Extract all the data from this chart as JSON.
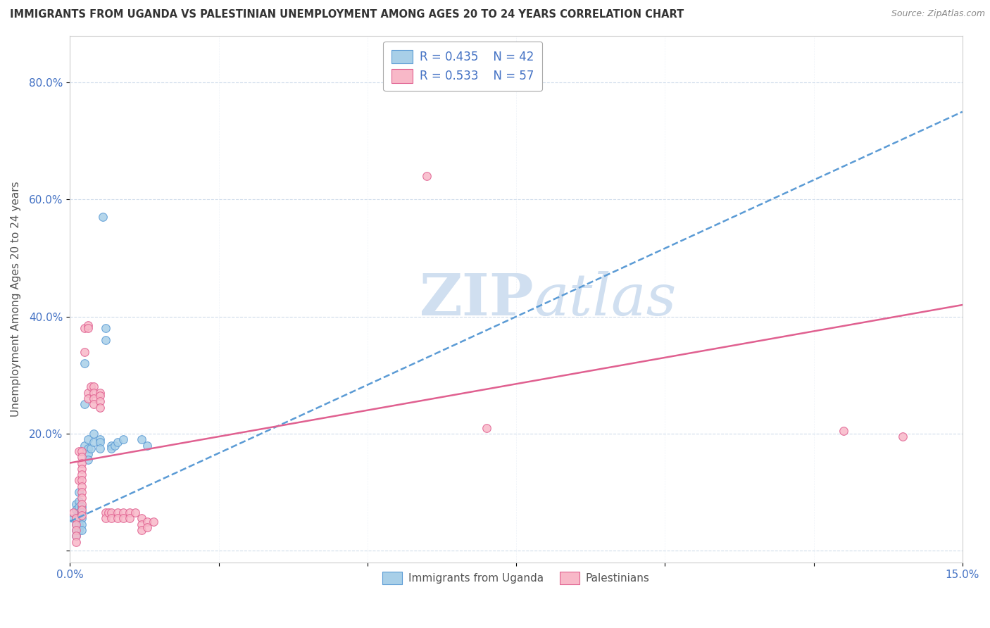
{
  "title": "IMMIGRANTS FROM UGANDA VS PALESTINIAN UNEMPLOYMENT AMONG AGES 20 TO 24 YEARS CORRELATION CHART",
  "source": "Source: ZipAtlas.com",
  "ylabel_label": "Unemployment Among Ages 20 to 24 years",
  "xlim": [
    0.0,
    0.15
  ],
  "ylim": [
    -0.02,
    0.88
  ],
  "legend1_r": "R = 0.435",
  "legend1_n": "N = 42",
  "legend2_r": "R = 0.533",
  "legend2_n": "N = 57",
  "blue_color": "#a8cfe8",
  "pink_color": "#f8b8c8",
  "blue_edge_color": "#5b9bd5",
  "pink_edge_color": "#e06090",
  "blue_line_color": "#5b9bd5",
  "pink_line_color": "#e06090",
  "watermark_color": "#d0dff0",
  "blue_line": [
    [
      0.0,
      0.05
    ],
    [
      0.15,
      0.75
    ]
  ],
  "pink_line": [
    [
      0.0,
      0.15
    ],
    [
      0.15,
      0.42
    ]
  ],
  "blue_scatter": [
    [
      0.0005,
      0.055
    ],
    [
      0.001,
      0.08
    ],
    [
      0.001,
      0.07
    ],
    [
      0.001,
      0.055
    ],
    [
      0.001,
      0.045
    ],
    [
      0.001,
      0.035
    ],
    [
      0.001,
      0.025
    ],
    [
      0.0015,
      0.1
    ],
    [
      0.0015,
      0.085
    ],
    [
      0.0015,
      0.075
    ],
    [
      0.0015,
      0.065
    ],
    [
      0.0015,
      0.055
    ],
    [
      0.0015,
      0.045
    ],
    [
      0.0015,
      0.035
    ],
    [
      0.002,
      0.075
    ],
    [
      0.002,
      0.065
    ],
    [
      0.002,
      0.055
    ],
    [
      0.002,
      0.045
    ],
    [
      0.002,
      0.035
    ],
    [
      0.0025,
      0.32
    ],
    [
      0.0025,
      0.25
    ],
    [
      0.0025,
      0.18
    ],
    [
      0.003,
      0.19
    ],
    [
      0.003,
      0.175
    ],
    [
      0.003,
      0.165
    ],
    [
      0.003,
      0.155
    ],
    [
      0.0035,
      0.175
    ],
    [
      0.004,
      0.2
    ],
    [
      0.004,
      0.185
    ],
    [
      0.005,
      0.19
    ],
    [
      0.005,
      0.185
    ],
    [
      0.005,
      0.175
    ],
    [
      0.0055,
      0.57
    ],
    [
      0.006,
      0.38
    ],
    [
      0.006,
      0.36
    ],
    [
      0.007,
      0.18
    ],
    [
      0.007,
      0.175
    ],
    [
      0.0075,
      0.18
    ],
    [
      0.008,
      0.185
    ],
    [
      0.009,
      0.19
    ],
    [
      0.012,
      0.19
    ],
    [
      0.013,
      0.18
    ]
  ],
  "pink_scatter": [
    [
      0.0005,
      0.065
    ],
    [
      0.001,
      0.055
    ],
    [
      0.001,
      0.045
    ],
    [
      0.001,
      0.035
    ],
    [
      0.001,
      0.025
    ],
    [
      0.001,
      0.015
    ],
    [
      0.0015,
      0.17
    ],
    [
      0.0015,
      0.12
    ],
    [
      0.002,
      0.17
    ],
    [
      0.002,
      0.16
    ],
    [
      0.002,
      0.15
    ],
    [
      0.002,
      0.14
    ],
    [
      0.002,
      0.13
    ],
    [
      0.002,
      0.12
    ],
    [
      0.002,
      0.11
    ],
    [
      0.002,
      0.1
    ],
    [
      0.002,
      0.09
    ],
    [
      0.002,
      0.08
    ],
    [
      0.002,
      0.07
    ],
    [
      0.002,
      0.06
    ],
    [
      0.0025,
      0.38
    ],
    [
      0.0025,
      0.34
    ],
    [
      0.003,
      0.385
    ],
    [
      0.003,
      0.38
    ],
    [
      0.003,
      0.27
    ],
    [
      0.003,
      0.26
    ],
    [
      0.0035,
      0.28
    ],
    [
      0.004,
      0.28
    ],
    [
      0.004,
      0.27
    ],
    [
      0.004,
      0.26
    ],
    [
      0.004,
      0.25
    ],
    [
      0.005,
      0.27
    ],
    [
      0.005,
      0.265
    ],
    [
      0.005,
      0.255
    ],
    [
      0.005,
      0.245
    ],
    [
      0.006,
      0.065
    ],
    [
      0.006,
      0.055
    ],
    [
      0.0065,
      0.065
    ],
    [
      0.007,
      0.065
    ],
    [
      0.007,
      0.055
    ],
    [
      0.008,
      0.065
    ],
    [
      0.008,
      0.055
    ],
    [
      0.009,
      0.065
    ],
    [
      0.009,
      0.055
    ],
    [
      0.01,
      0.065
    ],
    [
      0.01,
      0.055
    ],
    [
      0.011,
      0.065
    ],
    [
      0.012,
      0.055
    ],
    [
      0.012,
      0.045
    ],
    [
      0.012,
      0.035
    ],
    [
      0.013,
      0.05
    ],
    [
      0.013,
      0.04
    ],
    [
      0.014,
      0.05
    ],
    [
      0.06,
      0.64
    ],
    [
      0.07,
      0.21
    ],
    [
      0.13,
      0.205
    ],
    [
      0.14,
      0.195
    ]
  ],
  "x_ticks": [
    0.0,
    0.025,
    0.05,
    0.075,
    0.1,
    0.125,
    0.15
  ],
  "x_tick_labels": [
    "0.0%",
    "",
    "",
    "",
    "",
    "",
    "15.0%"
  ],
  "y_ticks": [
    0.0,
    0.2,
    0.4,
    0.6,
    0.8
  ],
  "y_tick_labels": [
    "",
    "20.0%",
    "40.0%",
    "60.0%",
    "80.0%"
  ]
}
